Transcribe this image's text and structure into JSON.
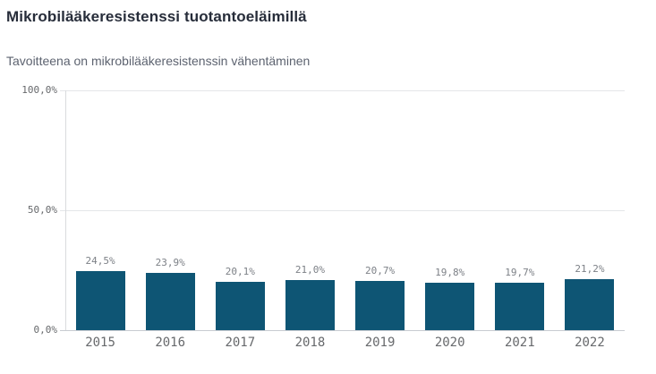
{
  "header": {
    "title": "Mikrobilääkeresistenssi tuotantoeläimillä",
    "subtitle": "Tavoitteena on mikrobilääkeresistenssin vähentäminen"
  },
  "chart_data": {
    "type": "bar",
    "title": "Mikrobilääkeresistenssi tuotantoeläimillä",
    "subtitle": "Tavoitteena on mikrobilääkeresistenssin vähentäminen",
    "categories": [
      "2015",
      "2016",
      "2017",
      "2018",
      "2019",
      "2020",
      "2021",
      "2022"
    ],
    "values": [
      24.5,
      23.9,
      20.1,
      21.0,
      20.7,
      19.8,
      19.7,
      21.2
    ],
    "value_labels": [
      "24,5%",
      "23,9%",
      "20,1%",
      "21,0%",
      "20,7%",
      "19,8%",
      "19,7%",
      "21,2%"
    ],
    "xlabel": "",
    "ylabel": "",
    "ylim": [
      0,
      100
    ],
    "yticks": [
      {
        "value": 0,
        "label": "0,0%"
      },
      {
        "value": 50,
        "label": "50,0%"
      },
      {
        "value": 100,
        "label": "100,0%"
      }
    ],
    "grid": true,
    "legend_position": "none",
    "bar_color": "#0e5574"
  },
  "colors": {
    "bar": "#0e5574",
    "title_text": "#272d3a",
    "subtitle_text": "#5d6370",
    "tick_text": "#67696c",
    "value_label_text": "#7d8187",
    "gridline": "#e4e6e9",
    "baseline": "#c8ccd1"
  }
}
